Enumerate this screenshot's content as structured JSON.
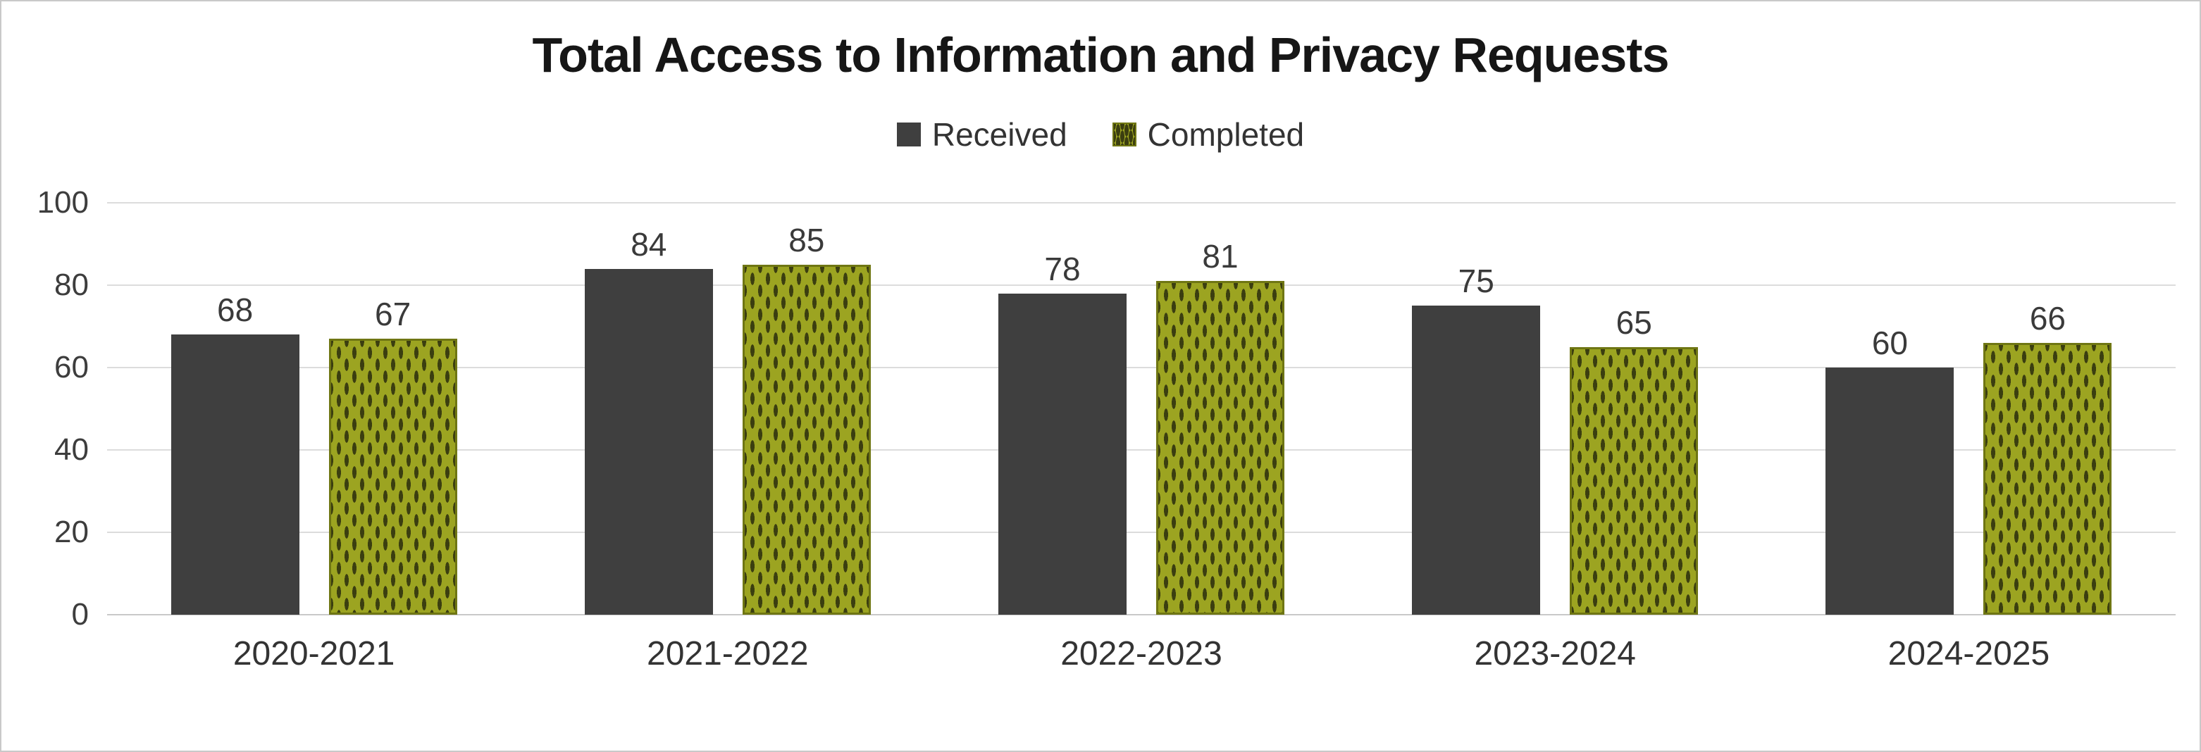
{
  "chart_data": {
    "type": "bar",
    "title": "Total Access to Information and Privacy Requests",
    "categories": [
      "2020-2021",
      "2021-2022",
      "2022-2023",
      "2023-2024",
      "2024-2025"
    ],
    "series": [
      {
        "name": "Received",
        "values": [
          68,
          84,
          78,
          75,
          60
        ],
        "color": "#3f3f3f",
        "pattern": "solid"
      },
      {
        "name": "Completed",
        "values": [
          67,
          85,
          81,
          65,
          66
        ],
        "color": "#9ca421",
        "pattern": "dashed"
      }
    ],
    "xlabel": "",
    "ylabel": "",
    "ylim": [
      0,
      100
    ],
    "yticks": [
      0,
      20,
      40,
      60,
      80,
      100
    ],
    "grid": true,
    "legend_position": "top",
    "colors": {
      "received": "#3f3f3f",
      "completed": "#9ca421",
      "completed_dash": "#3b3e10",
      "gridline": "#dcdcdc",
      "title_text": "#161616",
      "axis_text": "#3d3d3d"
    }
  }
}
